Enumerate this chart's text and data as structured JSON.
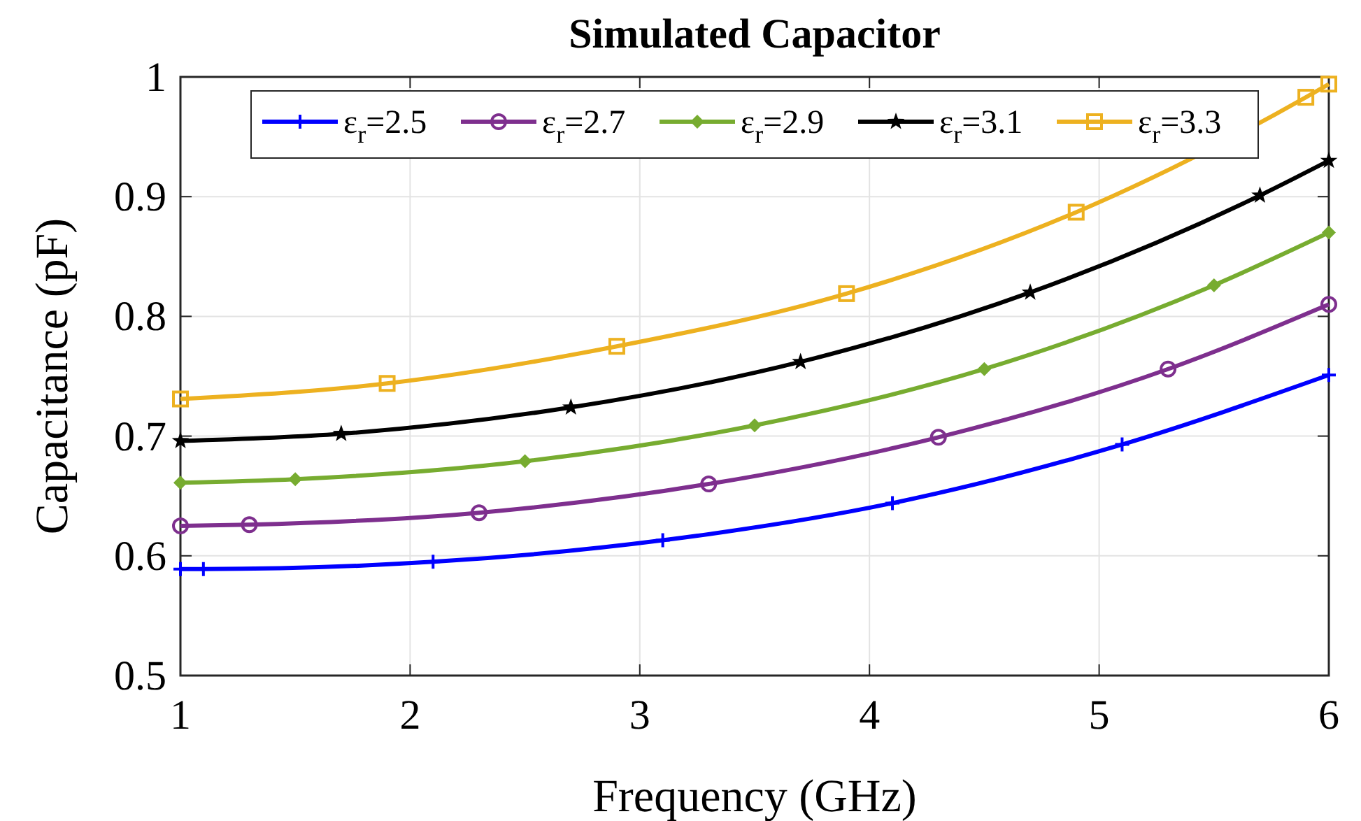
{
  "chart_data": {
    "type": "line",
    "title": "Simulated Capacitor",
    "xlabel": "Frequency (GHz)",
    "ylabel": "Capacitance (pF)",
    "xlim": [
      1,
      6
    ],
    "xticks": [
      1,
      2,
      3,
      4,
      5,
      6
    ],
    "ylim": [
      0.5,
      1
    ],
    "yticks": [
      0.5,
      0.6,
      0.7,
      0.8,
      0.9,
      1
    ],
    "grid": true,
    "legend": "top",
    "line_style": "solid",
    "series": [
      {
        "name": "ε$_{r}$=2.5",
        "color": "#0000ff",
        "marker": "cross",
        "x": [
          1,
          1.1,
          2.1,
          3.1,
          4.1,
          5.1,
          6
        ],
        "values": [
          0.589,
          0.589,
          0.595,
          0.613,
          0.644,
          0.693,
          0.751
        ]
      },
      {
        "name": "ε$_{r}$=2.7",
        "color": "#7e2f8e",
        "marker": "circle",
        "x": [
          1,
          1.3,
          2.3,
          3.3,
          4.3,
          5.3,
          6
        ],
        "values": [
          0.625,
          0.626,
          0.636,
          0.66,
          0.699,
          0.756,
          0.81
        ]
      },
      {
        "name": "ε$_{r}$=2.9",
        "color": "#77ac30",
        "marker": "diamond",
        "x": [
          1,
          1.5,
          2.5,
          3.5,
          4.5,
          5.5,
          6
        ],
        "values": [
          0.661,
          0.664,
          0.679,
          0.709,
          0.756,
          0.826,
          0.87
        ]
      },
      {
        "name": "ε$_{r}$=3.1",
        "color": "#000000",
        "marker": "star",
        "x": [
          1,
          1.7,
          2.7,
          3.7,
          4.7,
          5.7,
          6
        ],
        "values": [
          0.696,
          0.702,
          0.724,
          0.762,
          0.82,
          0.901,
          0.93
        ]
      },
      {
        "name": "ε$_{r}$=3.3",
        "color": "#edb120",
        "marker": "square",
        "x": [
          1,
          1.9,
          2.9,
          3.9,
          4.9,
          5.9,
          6
        ],
        "values": [
          0.731,
          0.744,
          0.775,
          0.819,
          0.887,
          0.983,
          0.994
        ]
      }
    ]
  }
}
